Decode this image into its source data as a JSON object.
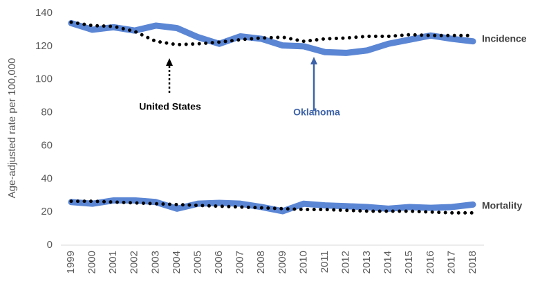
{
  "chart_data": {
    "type": "line",
    "ylabel": "Age-adjusted rate per 100,000",
    "categories": [
      "1999",
      "2000",
      "2001",
      "2002",
      "2003",
      "2004",
      "2005",
      "2006",
      "2007",
      "2008",
      "2009",
      "2010",
      "2011",
      "2012",
      "2013",
      "2014",
      "2015",
      "2016",
      "2017",
      "2018"
    ],
    "series": [
      {
        "color": "#5b86d4",
        "style": "solid",
        "values": [
          134,
          130,
          131.5,
          129.5,
          132.5,
          131,
          125.5,
          121.5,
          126,
          124.5,
          120.5,
          120,
          116.5,
          116,
          117.5,
          121.5,
          124,
          126.5,
          124.5,
          123
        ]
      },
      {
        "color": "#000000",
        "style": "dotted",
        "values": [
          134.5,
          132.5,
          132,
          129,
          123,
          121,
          121.5,
          122.5,
          124,
          125,
          125.5,
          123,
          124.5,
          125,
          126,
          126,
          127,
          126.5,
          126.5,
          126.5
        ]
      },
      {
        "color": "#5b86d4",
        "style": "solid",
        "values": [
          26,
          25,
          27,
          27,
          26,
          22,
          25,
          25.5,
          25,
          23,
          20.5,
          25,
          24,
          23.5,
          23,
          22,
          23,
          22.5,
          23,
          24.5
        ]
      },
      {
        "color": "#000000",
        "style": "dotted",
        "values": [
          26.5,
          26.5,
          26,
          25.5,
          25,
          24.5,
          24,
          23.5,
          23,
          22.5,
          22,
          21.5,
          21.5,
          21,
          20.5,
          20.5,
          20.5,
          20,
          19.5,
          19.5
        ]
      }
    ],
    "annotations": [
      "United States",
      "Oklahoma",
      "Incidence",
      "Mortality"
    ],
    "ylim": [
      0,
      140
    ],
    "yticks": [
      0,
      20,
      40,
      60,
      80,
      100,
      120,
      140
    ],
    "grid": false
  }
}
